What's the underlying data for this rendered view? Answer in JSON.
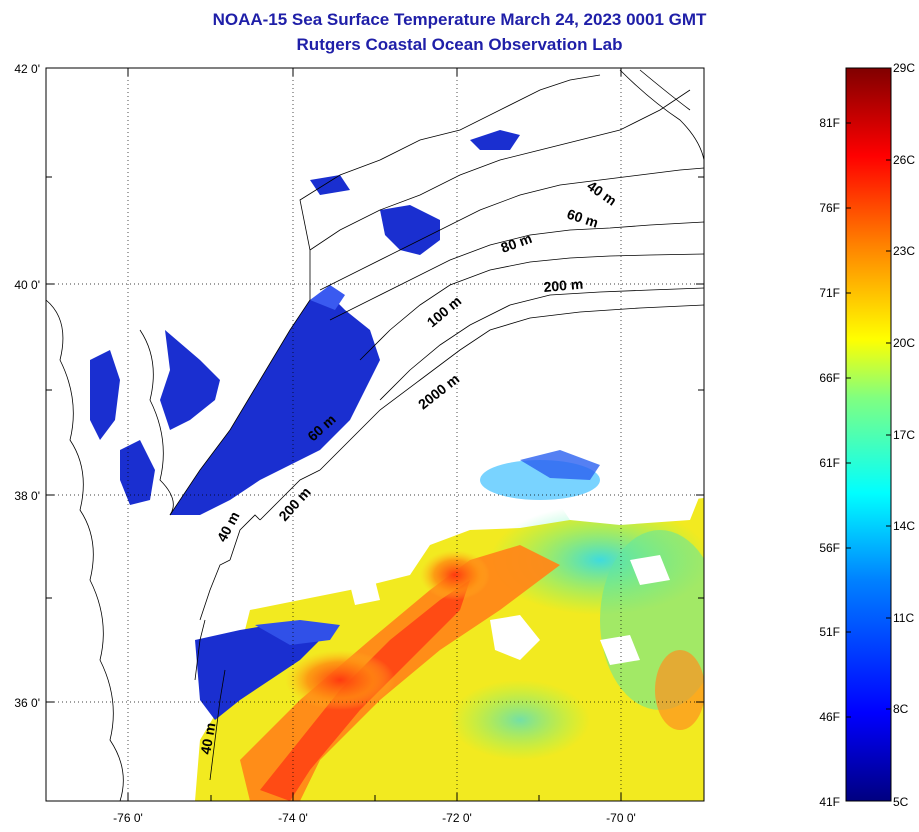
{
  "title_line1": "NOAA-15 Sea Surface Temperature March 24, 2023 0001 GMT",
  "title_line2": "Rutgers Coastal Ocean Observation Lab",
  "colors": {
    "title": "#1f1fa8",
    "cold_water": "#1a2fd0",
    "land": "#ffffff",
    "coastline": "#000000"
  },
  "axes": {
    "lat_ticks": [
      "42 0'",
      "40 0'",
      "38 0'",
      "36 0'"
    ],
    "lon_ticks": [
      "-76 0'",
      "-74 0'",
      "-72 0'",
      "-70 0'"
    ],
    "lat_range": [
      35,
      42
    ],
    "lon_range": [
      -77,
      -69
    ]
  },
  "contour_labels": [
    "40 m",
    "60 m",
    "80 m",
    "200 m",
    "100 m",
    "2000 m",
    "60 m",
    "200 m",
    "40 m",
    "40 m"
  ],
  "colorbar": {
    "fahrenheit_labels": [
      "81F",
      "76F",
      "71F",
      "66F",
      "61F",
      "56F",
      "51F",
      "46F",
      "41F"
    ],
    "celsius_labels": [
      "29C",
      "26C",
      "23C",
      "20C",
      "17C",
      "14C",
      "11C",
      "8C",
      "5C"
    ],
    "range_c": [
      5,
      29
    ],
    "stops": [
      "#000080",
      "#0000ff",
      "#0080ff",
      "#00ffff",
      "#80ff80",
      "#ffff00",
      "#ff8000",
      "#ff0000",
      "#800000"
    ]
  }
}
